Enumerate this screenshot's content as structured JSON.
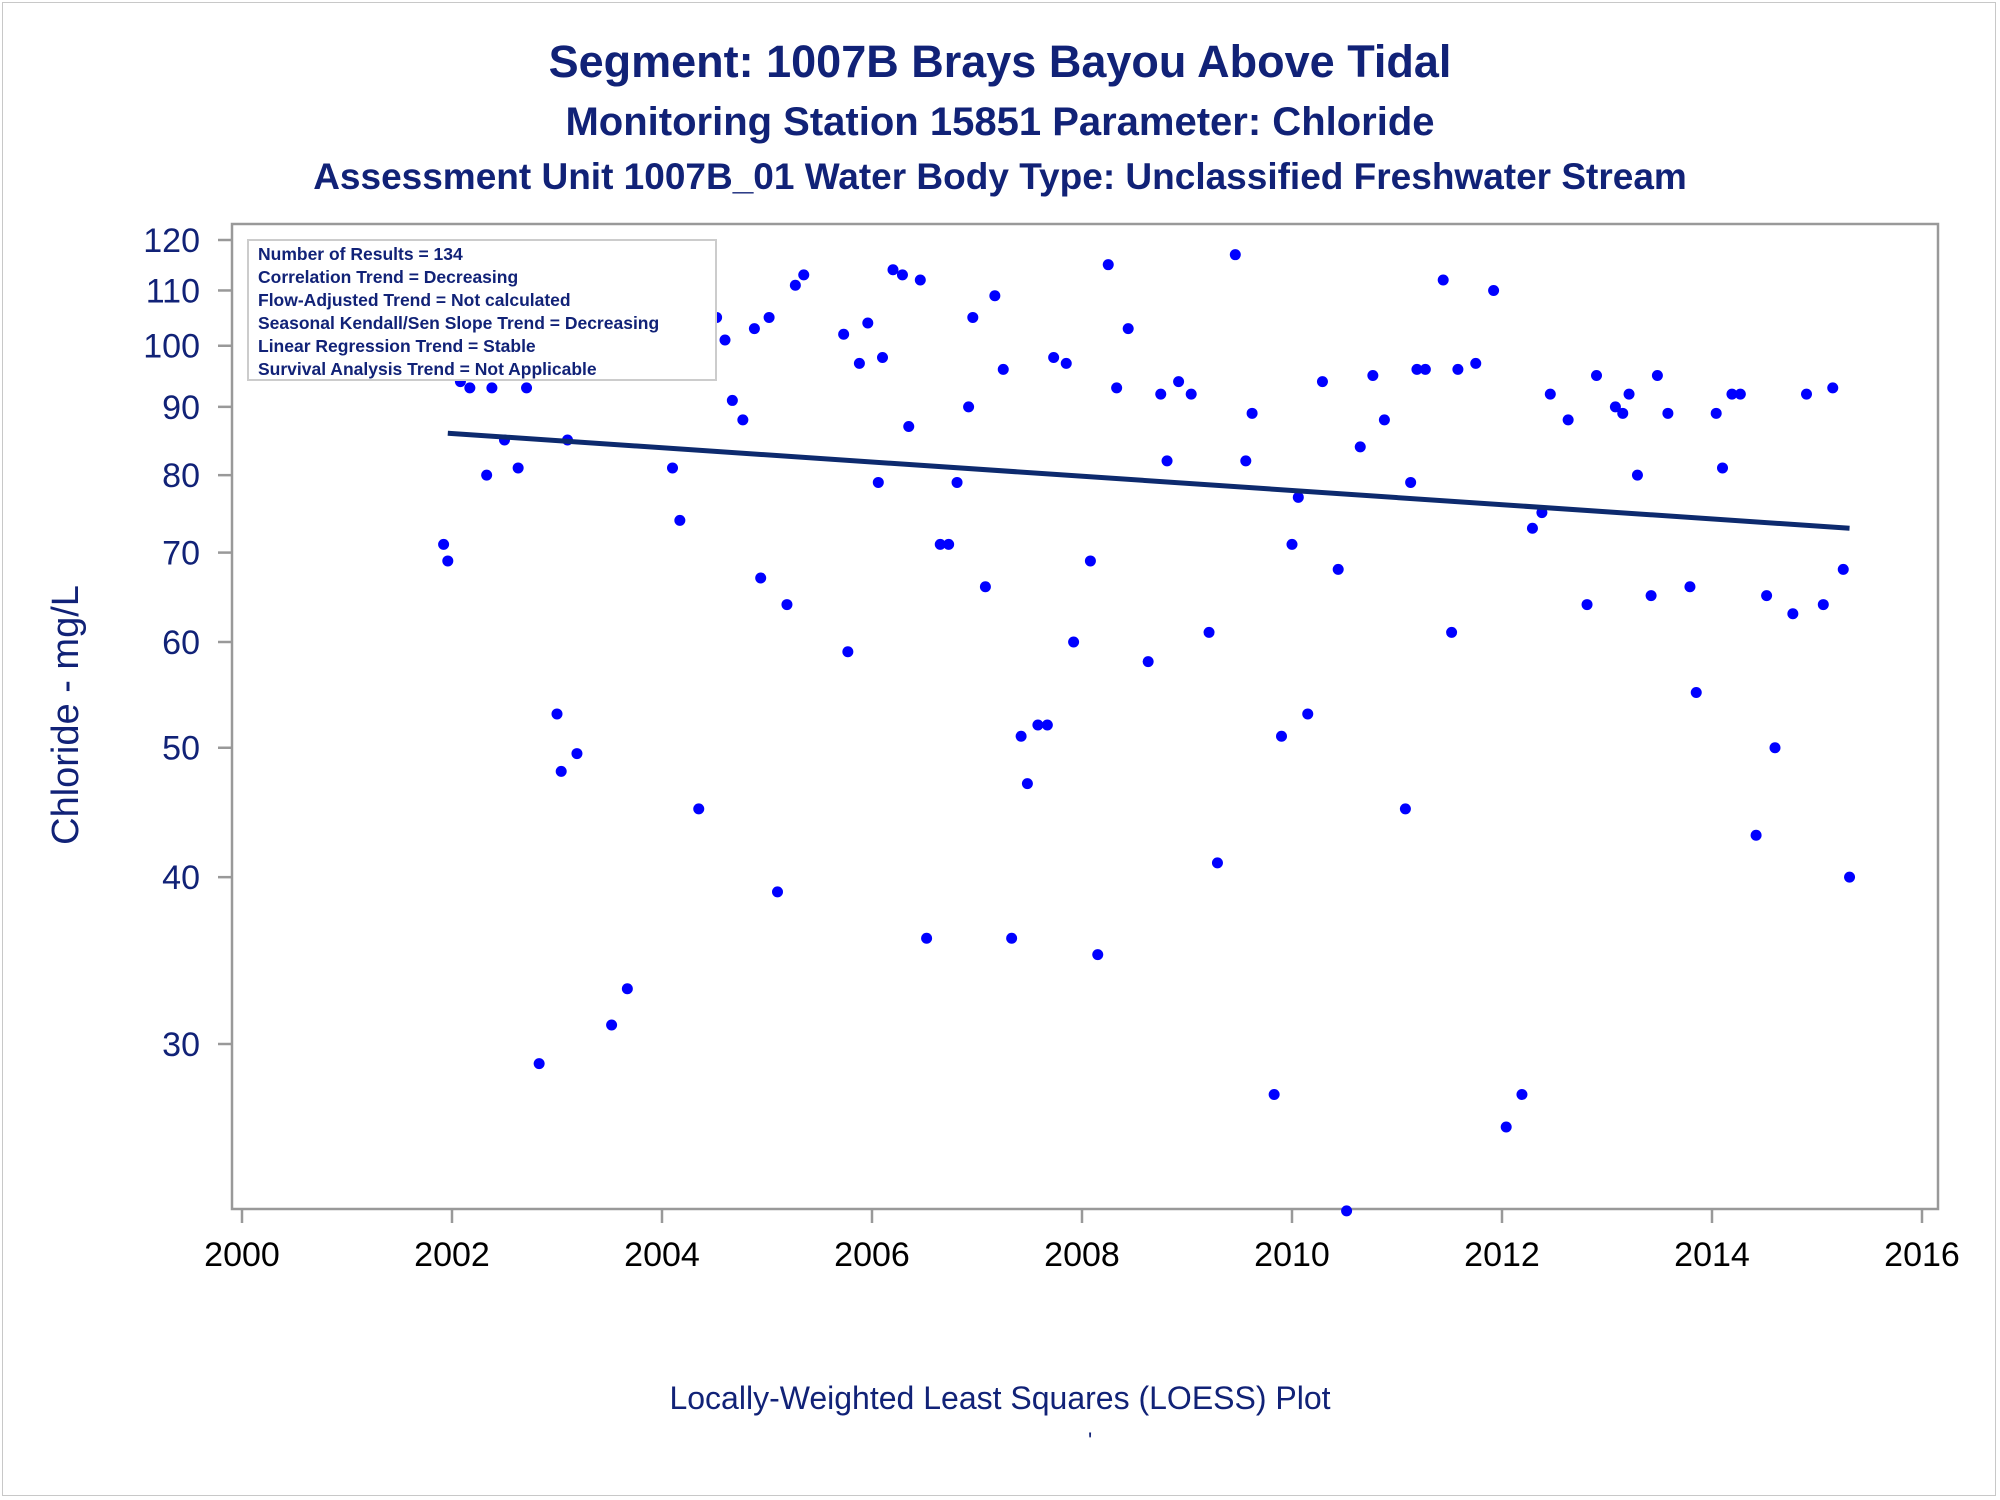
{
  "titles": {
    "line1": "Segment: 1007B  Brays Bayou Above Tidal",
    "line2": "Monitoring Station 15851 Parameter: Chloride",
    "line3": "Assessment Unit 1007B_01   Water Body Type: Unclassified Freshwater Stream"
  },
  "footer": {
    "caption": "Locally-Weighted Least Squares (LOESS) Plot",
    "mark": "'"
  },
  "stats_box": {
    "lines": [
      "Number of Results = 134",
      "Correlation Trend = Decreasing",
      "Flow-Adjusted Trend = Not calculated",
      "Seasonal Kendall/Sen Slope Trend = Decreasing",
      "Linear Regression Trend = Stable",
      "Survival Analysis Trend = Not Applicable"
    ]
  },
  "colors": {
    "title": "#112277",
    "points": "#0000ff",
    "trend_line": "#0d2a6e",
    "axis": "#999999"
  },
  "chart_data": {
    "type": "scatter",
    "xlabel": "",
    "ylabel": "Chloride - mg/L",
    "yscale": "log",
    "xlim": [
      2000,
      2016
    ],
    "ylim": [
      22,
      125
    ],
    "x_ticks": [
      "2000",
      "2002",
      "2004",
      "2006",
      "2008",
      "2010",
      "2012",
      "2014",
      "2016"
    ],
    "y_ticks": [
      120,
      110,
      100,
      90,
      80,
      70,
      60,
      50,
      40,
      30
    ],
    "grid": false,
    "legend": "top-left",
    "trend_line": {
      "x": [
        2001.96,
        2015.31
      ],
      "y": [
        86,
        73
      ]
    },
    "series": [
      {
        "points": [
          [
            2001.92,
            71
          ],
          [
            2001.96,
            69
          ],
          [
            2002.08,
            94
          ],
          [
            2002.17,
            93
          ],
          [
            2002.25,
            99
          ],
          [
            2002.33,
            80
          ],
          [
            2002.38,
            93
          ],
          [
            2002.5,
            85
          ],
          [
            2002.54,
            105
          ],
          [
            2002.63,
            81
          ],
          [
            2002.71,
            93
          ],
          [
            2002.83,
            29
          ],
          [
            2002.88,
            104
          ],
          [
            2003.0,
            53
          ],
          [
            2003.04,
            48
          ],
          [
            2003.1,
            85
          ],
          [
            2003.19,
            49.5
          ],
          [
            2003.25,
            111
          ],
          [
            2003.33,
            105
          ],
          [
            2003.42,
            102
          ],
          [
            2003.52,
            31
          ],
          [
            2003.67,
            33
          ],
          [
            2003.81,
            104
          ],
          [
            2003.85,
            108
          ],
          [
            2003.94,
            105
          ],
          [
            2004.02,
            108
          ],
          [
            2004.1,
            81
          ],
          [
            2004.17,
            74
          ],
          [
            2004.27,
            107
          ],
          [
            2004.35,
            45
          ],
          [
            2004.44,
            105
          ],
          [
            2004.52,
            105
          ],
          [
            2004.6,
            101
          ],
          [
            2004.67,
            91
          ],
          [
            2004.77,
            88
          ],
          [
            2004.88,
            103
          ],
          [
            2004.94,
            67
          ],
          [
            2005.02,
            105
          ],
          [
            2005.1,
            39
          ],
          [
            2005.19,
            64
          ],
          [
            2005.27,
            111
          ],
          [
            2005.35,
            113
          ],
          [
            2005.73,
            102
          ],
          [
            2005.77,
            59
          ],
          [
            2005.88,
            97
          ],
          [
            2005.96,
            104
          ],
          [
            2006.06,
            79
          ],
          [
            2006.1,
            98
          ],
          [
            2006.2,
            114
          ],
          [
            2006.29,
            113
          ],
          [
            2006.35,
            87
          ],
          [
            2006.46,
            112
          ],
          [
            2006.52,
            36
          ],
          [
            2006.65,
            71
          ],
          [
            2006.73,
            71
          ],
          [
            2006.81,
            79
          ],
          [
            2006.92,
            90
          ],
          [
            2006.96,
            105
          ],
          [
            2007.08,
            66
          ],
          [
            2007.17,
            109
          ],
          [
            2007.25,
            96
          ],
          [
            2007.33,
            36
          ],
          [
            2007.42,
            51
          ],
          [
            2007.48,
            47
          ],
          [
            2007.58,
            52
          ],
          [
            2007.67,
            52
          ],
          [
            2007.73,
            98
          ],
          [
            2007.85,
            97
          ],
          [
            2007.92,
            60
          ],
          [
            2008.08,
            69
          ],
          [
            2008.15,
            35
          ],
          [
            2008.25,
            115
          ],
          [
            2008.33,
            93
          ],
          [
            2008.44,
            103
          ],
          [
            2008.63,
            58
          ],
          [
            2008.75,
            92
          ],
          [
            2008.81,
            82
          ],
          [
            2008.92,
            94
          ],
          [
            2009.04,
            92
          ],
          [
            2009.21,
            61
          ],
          [
            2009.29,
            41
          ],
          [
            2009.46,
            117
          ],
          [
            2009.56,
            82
          ],
          [
            2009.62,
            89
          ],
          [
            2009.83,
            27.5
          ],
          [
            2009.9,
            51
          ],
          [
            2010.0,
            71
          ],
          [
            2010.06,
            77
          ],
          [
            2010.15,
            53
          ],
          [
            2010.29,
            94
          ],
          [
            2010.44,
            68
          ],
          [
            2010.52,
            22.5
          ],
          [
            2010.65,
            84
          ],
          [
            2010.77,
            95
          ],
          [
            2010.88,
            88
          ],
          [
            2011.08,
            45
          ],
          [
            2011.13,
            79
          ],
          [
            2011.19,
            96
          ],
          [
            2011.27,
            96
          ],
          [
            2011.44,
            112
          ],
          [
            2011.52,
            61
          ],
          [
            2011.58,
            96
          ],
          [
            2011.75,
            97
          ],
          [
            2011.92,
            110
          ],
          [
            2012.04,
            26
          ],
          [
            2012.19,
            27.5
          ],
          [
            2012.29,
            73
          ],
          [
            2012.38,
            75
          ],
          [
            2012.46,
            92
          ],
          [
            2012.63,
            88
          ],
          [
            2012.81,
            64
          ],
          [
            2012.9,
            95
          ],
          [
            2013.08,
            90
          ],
          [
            2013.15,
            89
          ],
          [
            2013.21,
            92
          ],
          [
            2013.29,
            80
          ],
          [
            2013.42,
            65
          ],
          [
            2013.48,
            95
          ],
          [
            2013.58,
            89
          ],
          [
            2013.79,
            66
          ],
          [
            2013.85,
            55
          ],
          [
            2014.04,
            89
          ],
          [
            2014.1,
            81
          ],
          [
            2014.19,
            92
          ],
          [
            2014.27,
            92
          ],
          [
            2014.42,
            43
          ],
          [
            2014.52,
            65
          ],
          [
            2014.6,
            50
          ],
          [
            2014.77,
            63
          ],
          [
            2014.9,
            92
          ],
          [
            2015.06,
            64
          ],
          [
            2015.15,
            93
          ],
          [
            2015.25,
            68
          ],
          [
            2015.31,
            40
          ]
        ]
      }
    ]
  }
}
